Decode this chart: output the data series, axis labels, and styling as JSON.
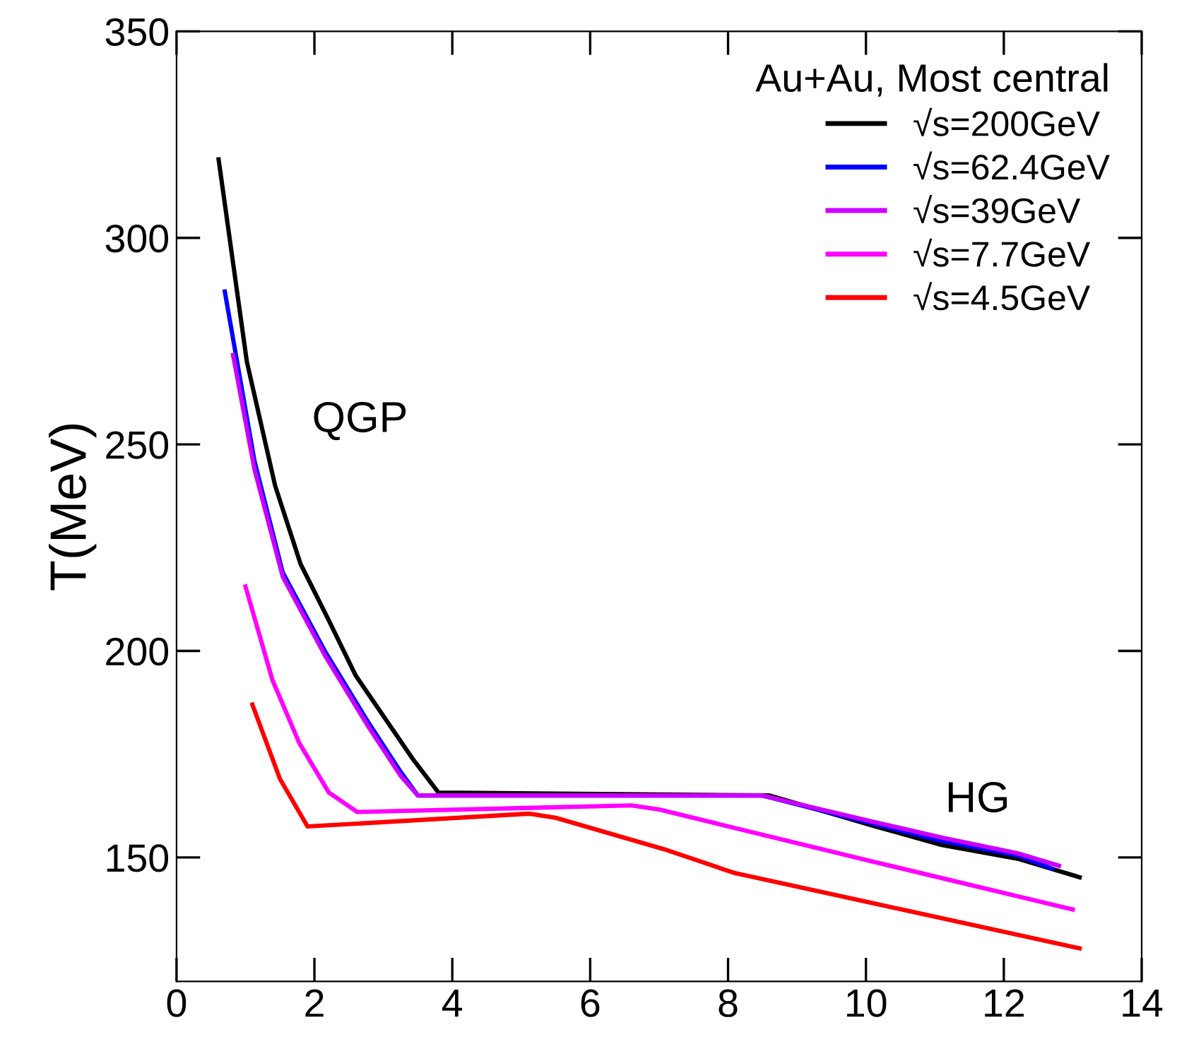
{
  "chart_data": {
    "type": "line",
    "ylabel": "T(MeV)",
    "legend_title": "Au+Au, Most central",
    "legend": "top right",
    "grid": false,
    "marker": "none",
    "line_style": "solid",
    "xlim": [
      0,
      14
    ],
    "ylim": [
      120,
      350
    ],
    "xticks": [
      0,
      2,
      4,
      6,
      8,
      10,
      12,
      14
    ],
    "yticks": [
      150,
      200,
      250,
      300,
      350
    ],
    "annotations": [
      "QGP",
      "HG"
    ],
    "series": [
      {
        "name": "√s=200GeV",
        "color": "#000000",
        "x": [
          0.61,
          1.02,
          1.43,
          1.8,
          2.19,
          2.6,
          3.01,
          3.42,
          3.8,
          8.6,
          10.14,
          11.1,
          12.2,
          13.1
        ],
        "values": [
          319,
          270,
          240,
          221,
          208,
          194,
          184,
          174,
          165.7,
          165,
          157.5,
          153,
          149.7,
          145.2
        ]
      },
      {
        "name": "√s=62.4GeV",
        "color": "#0000ff",
        "x": [
          0.7,
          1.13,
          1.54,
          2.15,
          2.77,
          3.24,
          3.5,
          8.5,
          10.14,
          11.1,
          12.2,
          12.7
        ],
        "values": [
          287,
          246,
          219,
          200,
          183,
          171,
          165,
          165,
          158,
          154,
          150.5,
          147.3
        ]
      },
      {
        "name": "√s=39GeV",
        "color": "#cc00ff",
        "x": [
          0.82,
          1.13,
          1.54,
          2.15,
          2.77,
          3.24,
          3.5,
          8.5,
          10.14,
          11.1,
          12.2,
          12.8
        ],
        "values": [
          271.6,
          244,
          218,
          199,
          182,
          170,
          165,
          165,
          158.5,
          154.8,
          151,
          148
        ]
      },
      {
        "name": "√s=7.7GeV",
        "color": "#ff00ff",
        "x": [
          1.0,
          1.39,
          1.78,
          2.21,
          2.62,
          6.6,
          7.0,
          10.1,
          13.0
        ],
        "values": [
          215.6,
          193,
          177.7,
          165.7,
          161,
          162.6,
          161.6,
          149,
          137.4
        ]
      },
      {
        "name": "√s=4.5GeV",
        "color": "#ff0000",
        "x": [
          1.1,
          1.5,
          1.9,
          5.12,
          5.5,
          7.07,
          8.1,
          10.8,
          13.1
        ],
        "values": [
          187,
          169,
          157.5,
          160.6,
          159.6,
          152,
          146.2,
          136.4,
          128
        ]
      }
    ]
  }
}
